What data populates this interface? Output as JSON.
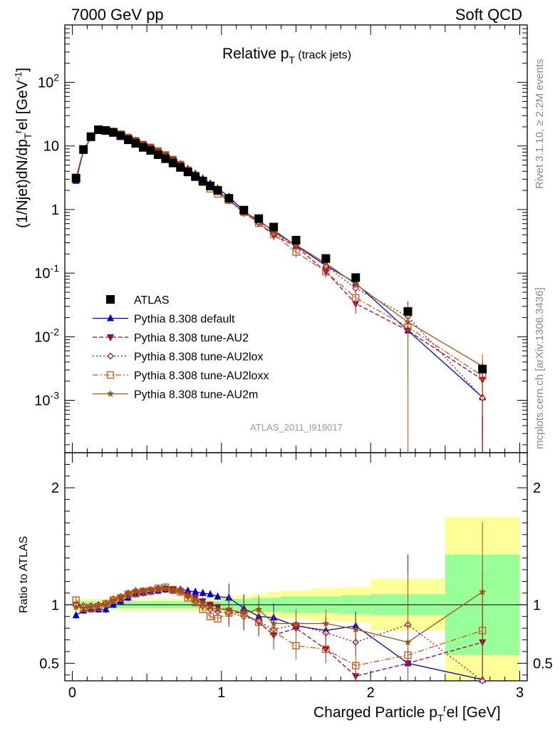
{
  "header": {
    "left": "7000 GeV pp",
    "right": "Soft QCD"
  },
  "title_main": "Relative p",
  "title_sub": "T",
  "title_suffix": " (track jets)",
  "side_text_top": "Rivet 3.1.10, ≥ 2.2M events",
  "side_text_bottom": "mcplots.cern.ch [arXiv:1306.3436]",
  "watermark": "ATLAS_2011_I919017",
  "ylabel_main": "(1/Njet)dN/dp",
  "ylabel_main_sub": "T",
  "ylabel_main_sup": "r",
  "ylabel_main_rest": "el [GeV",
  "ylabel_main_unit_sup": "-1",
  "ylabel_main_close": "]",
  "ylabel_ratio": "Ratio to ATLAS",
  "xlabel": "Charged Particle p",
  "xlabel_sub": "T",
  "xlabel_sup": "r",
  "xlabel_rest": "el [GeV]",
  "colors": {
    "data": "#000000",
    "default": "#0000cc",
    "au2": "#99003f",
    "au2lox": "#a8002b",
    "au2loxx": "#c45a1a",
    "au2m": "#995511",
    "band_green": "#99ff99",
    "band_yellow": "#ffff99"
  },
  "chart_data": {
    "type": "line",
    "x_bin_edges": [
      0.0,
      0.05,
      0.1,
      0.15,
      0.2,
      0.25,
      0.3,
      0.35,
      0.4,
      0.45,
      0.5,
      0.55,
      0.6,
      0.65,
      0.7,
      0.75,
      0.8,
      0.85,
      0.9,
      0.95,
      1.0,
      1.1,
      1.2,
      1.3,
      1.4,
      1.6,
      1.8,
      2.0,
      2.5,
      3.0
    ],
    "x": [
      0.025,
      0.075,
      0.125,
      0.175,
      0.225,
      0.275,
      0.325,
      0.375,
      0.425,
      0.475,
      0.525,
      0.575,
      0.625,
      0.675,
      0.725,
      0.775,
      0.825,
      0.875,
      0.925,
      0.975,
      1.05,
      1.15,
      1.25,
      1.35,
      1.5,
      1.7,
      1.9,
      2.25,
      2.75
    ],
    "xlim": [
      -0.05,
      3.05
    ],
    "main_ylim": [
      0.00015,
      800
    ],
    "main_yscale": "log",
    "main_ticks": [
      "10^-3",
      "10^-2",
      "10^-1",
      "1",
      "10",
      "10^2"
    ],
    "ratio_ylim": [
      0.35,
      2.3
    ],
    "ratio_ticks": [
      "0.5",
      "1",
      "2"
    ],
    "x_ticks": [
      "0",
      "1",
      "2",
      "3"
    ],
    "data": {
      "name": "ATLAS",
      "values": [
        3.1,
        8.8,
        14.0,
        18.0,
        17.5,
        16.3,
        14.5,
        12.5,
        11.0,
        9.5,
        8.5,
        7.3,
        6.3,
        5.4,
        4.6,
        3.9,
        3.3,
        2.8,
        2.35,
        2.0,
        1.5,
        0.98,
        0.72,
        0.53,
        0.33,
        0.17,
        0.085,
        0.025,
        0.0031
      ],
      "band_green": [
        0.03,
        0.03,
        0.03,
        0.03,
        0.03,
        0.03,
        0.03,
        0.03,
        0.03,
        0.03,
        0.03,
        0.03,
        0.03,
        0.03,
        0.03,
        0.03,
        0.03,
        0.03,
        0.03,
        0.03,
        0.05,
        0.05,
        0.06,
        0.06,
        0.07,
        0.07,
        0.08,
        0.09,
        0.43
      ],
      "band_yellow": [
        0.05,
        0.05,
        0.05,
        0.05,
        0.05,
        0.05,
        0.05,
        0.05,
        0.05,
        0.05,
        0.05,
        0.05,
        0.05,
        0.05,
        0.05,
        0.05,
        0.05,
        0.05,
        0.05,
        0.05,
        0.07,
        0.08,
        0.09,
        0.11,
        0.12,
        0.14,
        0.15,
        0.22,
        0.75
      ]
    },
    "series": [
      {
        "name": "Pythia 8.308 default",
        "key": "default",
        "marker": "triangle-up",
        "dash": "",
        "ratio": [
          0.91,
          0.95,
          0.96,
          0.96,
          0.96,
          1.0,
          1.03,
          1.06,
          1.09,
          1.1,
          1.11,
          1.12,
          1.13,
          1.12,
          1.13,
          1.12,
          1.11,
          1.1,
          1.09,
          1.07,
          1.06,
          0.97,
          0.9,
          0.89,
          0.82,
          0.78,
          0.82,
          0.5,
          0.36
        ]
      },
      {
        "name": "Pythia 8.308 tune-AU2",
        "key": "au2",
        "marker": "triangle-down",
        "dash": "6,3",
        "ratio": [
          1.0,
          0.98,
          0.98,
          0.99,
          1.0,
          1.03,
          1.05,
          1.08,
          1.1,
          1.12,
          1.12,
          1.13,
          1.14,
          1.13,
          1.12,
          1.09,
          1.06,
          1.03,
          1.0,
          0.98,
          0.95,
          0.92,
          0.85,
          0.74,
          0.8,
          0.62,
          0.39,
          0.5,
          0.68
        ]
      },
      {
        "name": "Pythia 8.308 tune-AU2lox",
        "key": "au2lox",
        "marker": "diamond-open",
        "dash": "2,3",
        "ratio": [
          1.0,
          0.99,
          0.99,
          1.0,
          1.01,
          1.05,
          1.07,
          1.1,
          1.12,
          1.12,
          1.13,
          1.14,
          1.14,
          1.13,
          1.11,
          1.07,
          1.03,
          0.99,
          0.96,
          0.94,
          0.93,
          0.9,
          0.86,
          0.79,
          0.83,
          0.76,
          0.68,
          0.83,
          0.35
        ]
      },
      {
        "name": "Pythia 8.308 tune-AU2loxx",
        "key": "au2loxx",
        "marker": "square-open",
        "dash": "8,3,2,3",
        "ratio": [
          1.04,
          0.97,
          0.97,
          0.98,
          1.01,
          1.04,
          1.06,
          1.09,
          1.1,
          1.11,
          1.12,
          1.14,
          1.15,
          1.13,
          1.11,
          1.06,
          1.02,
          0.96,
          0.9,
          0.88,
          0.93,
          0.93,
          0.85,
          0.77,
          0.65,
          0.62,
          0.48,
          0.57,
          0.78
        ]
      },
      {
        "name": "Pythia 8.308 tune-AU2m",
        "key": "au2m",
        "marker": "star",
        "dash": "",
        "ratio": [
          0.98,
          0.97,
          0.98,
          0.99,
          1.0,
          1.04,
          1.07,
          1.1,
          1.12,
          1.12,
          1.13,
          1.14,
          1.14,
          1.13,
          1.12,
          1.08,
          1.05,
          1.01,
          0.98,
          0.96,
          0.96,
          0.93,
          0.96,
          0.84,
          0.84,
          0.84,
          0.79,
          0.68,
          1.11
        ]
      }
    ]
  }
}
